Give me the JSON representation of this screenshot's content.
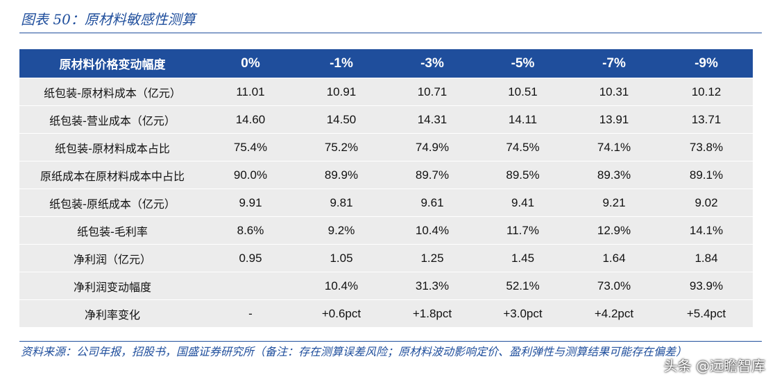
{
  "title": "图表 50：原材料敏感性测算",
  "table": {
    "header": [
      "原材料价格变动幅度",
      "0%",
      "-1%",
      "-3%",
      "-5%",
      "-7%",
      "-9%"
    ],
    "rows": [
      {
        "label": "纸包装-原材料成本（亿元）",
        "values": [
          "11.01",
          "10.91",
          "10.71",
          "10.51",
          "10.31",
          "10.12"
        ]
      },
      {
        "label": "纸包装-营业成本（亿元）",
        "values": [
          "14.60",
          "14.50",
          "14.31",
          "14.11",
          "13.91",
          "13.71"
        ]
      },
      {
        "label": "纸包装-原材料成本占比",
        "values": [
          "75.4%",
          "75.2%",
          "74.9%",
          "74.5%",
          "74.1%",
          "73.8%"
        ]
      },
      {
        "label": "原纸成本在原材料成本中占比",
        "values": [
          "90.0%",
          "89.9%",
          "89.7%",
          "89.5%",
          "89.3%",
          "89.1%"
        ]
      },
      {
        "label": "纸包装-原纸成本（亿元）",
        "values": [
          "9.91",
          "9.81",
          "9.61",
          "9.41",
          "9.21",
          "9.02"
        ]
      },
      {
        "label": "纸包装-毛利率",
        "values": [
          "8.6%",
          "9.2%",
          "10.4%",
          "11.7%",
          "12.9%",
          "14.1%"
        ]
      },
      {
        "label": "净利润（亿元）",
        "values": [
          "0.95",
          "1.05",
          "1.25",
          "1.45",
          "1.64",
          "1.84"
        ]
      },
      {
        "label": "净利润变动幅度",
        "values": [
          "",
          "10.4%",
          "31.3%",
          "52.1%",
          "73.0%",
          "93.9%"
        ]
      },
      {
        "label": "净利率变化",
        "values": [
          "-",
          "+0.6pct",
          "+1.8pct",
          "+3.0pct",
          "+4.2pct",
          "+5.4pct"
        ]
      }
    ]
  },
  "source": "资料来源：公司年报，招股书，国盛证券研究所（备注：存在测算误差风险；原材料波动影响定价、盈利弹性与测算结果可能存在偏差）",
  "watermark": "头条 @远瞻智库"
}
